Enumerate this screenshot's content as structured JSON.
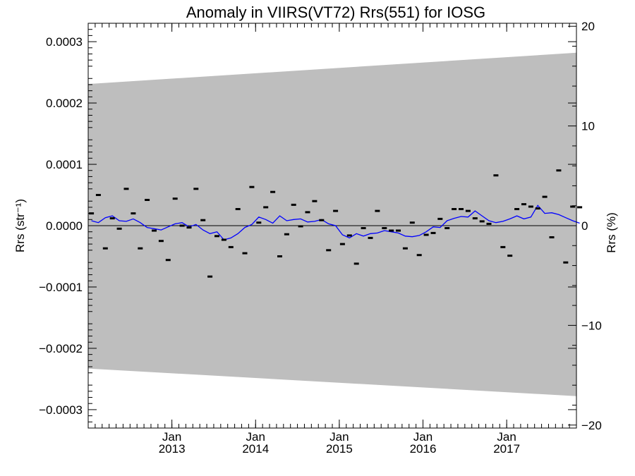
{
  "chart_data": {
    "type": "scatter",
    "title": "Anomaly in VIIRS(VT72) Rrs(551) for IOSG",
    "ylabel_left": "Rrs (str⁻¹)",
    "ylabel_right": "Rrs (%)",
    "xlabel": "",
    "xlim": [
      "2012-01-01",
      "2017-11-01"
    ],
    "ylim_left": [
      -0.00033,
      0.00033
    ],
    "ylim_right": [
      -20.3,
      20.3
    ],
    "x_ticks": [
      {
        "month": "Jan",
        "year": "2013",
        "date": "2013-01-01"
      },
      {
        "month": "Jan",
        "year": "2014",
        "date": "2014-01-01"
      },
      {
        "month": "Jan",
        "year": "2015",
        "date": "2015-01-01"
      },
      {
        "month": "Jan",
        "year": "2016",
        "date": "2016-01-01"
      },
      {
        "month": "Jan",
        "year": "2017",
        "date": "2017-01-01"
      }
    ],
    "y_ticks_left": [
      {
        "value": 0.0003,
        "label": "0.0003"
      },
      {
        "value": 0.0002,
        "label": "0.0002"
      },
      {
        "value": 0.0001,
        "label": "0.0001"
      },
      {
        "value": 0.0,
        "label": "0.0000"
      },
      {
        "value": -0.0001,
        "label": "−0.0001"
      },
      {
        "value": -0.0002,
        "label": "−0.0002"
      },
      {
        "value": -0.0003,
        "label": "−0.0003"
      }
    ],
    "y_ticks_right": [
      {
        "value": 20,
        "label": "20"
      },
      {
        "value": 10,
        "label": "10"
      },
      {
        "value": 0,
        "label": "0"
      },
      {
        "value": -10,
        "label": "−10"
      },
      {
        "value": -20,
        "label": "−20"
      }
    ],
    "band": {
      "x": [
        "2012-01-01",
        "2017-11-01"
      ],
      "upper": [
        0.000231,
        0.000282
      ],
      "lower": [
        -0.000233,
        -0.000278
      ],
      "color": "#bebebe"
    },
    "zero_line": 0,
    "series": [
      {
        "kind": "points",
        "color": "#000000",
        "x": [
          "2012-01",
          "2012-02",
          "2012-03",
          "2012-04",
          "2012-05",
          "2012-06",
          "2012-07",
          "2012-08",
          "2012-09",
          "2012-10",
          "2012-11",
          "2012-12",
          "2013-01",
          "2013-02",
          "2013-03",
          "2013-04",
          "2013-05",
          "2013-06",
          "2013-07",
          "2013-08",
          "2013-09",
          "2013-10",
          "2013-11",
          "2013-12",
          "2014-01",
          "2014-02",
          "2014-03",
          "2014-04",
          "2014-05",
          "2014-06",
          "2014-07",
          "2014-08",
          "2014-09",
          "2014-10",
          "2014-11",
          "2014-12",
          "2015-01",
          "2015-02",
          "2015-03",
          "2015-04",
          "2015-05",
          "2015-06",
          "2015-07",
          "2015-08",
          "2015-09",
          "2015-10",
          "2015-11",
          "2015-12",
          "2016-01",
          "2016-02",
          "2016-03",
          "2016-04",
          "2016-05",
          "2016-06",
          "2016-07",
          "2016-08",
          "2016-09",
          "2016-10",
          "2016-11",
          "2016-12",
          "2017-01",
          "2017-02",
          "2017-03",
          "2017-04",
          "2017-05",
          "2017-06",
          "2017-07",
          "2017-08",
          "2017-09",
          "2017-10",
          "2017-11"
        ],
        "y": [
          2e-05,
          5e-05,
          -3.7e-05,
          1.2e-05,
          -5e-06,
          6e-05,
          2e-05,
          -3.7e-05,
          4.2e-05,
          -8e-06,
          -2.5e-05,
          -5.6e-05,
          4.4e-05,
          0.0,
          -3e-06,
          6e-05,
          9e-06,
          -8.3e-05,
          -1.7e-05,
          -2.3e-05,
          -3.5e-05,
          2.7e-05,
          -4.5e-05,
          6.3e-05,
          5e-06,
          3e-05,
          5.5e-05,
          -5e-05,
          -1.4e-05,
          3.4e-05,
          -1e-06,
          2.2e-05,
          4e-05,
          9e-06,
          -4e-05,
          2.4e-05,
          -3e-05,
          -1.6e-05,
          -6.2e-05,
          -4e-06,
          -2e-05,
          2.4e-05,
          -4e-06,
          -8e-06,
          -8e-06,
          -3.7e-05,
          5e-06,
          -4.8e-05,
          -1.5e-05,
          -1.2e-05,
          1.1e-05,
          -4e-06,
          2.7e-05,
          2.7e-05,
          2.4e-05,
          1.2e-05,
          7e-06,
          3e-06,
          8.2e-05,
          -3.5e-05,
          -4.9e-05,
          2.7e-05,
          3.5e-05,
          3.1e-05,
          2.8e-05,
          4.7e-05,
          -1.9e-05,
          9e-05,
          -6e-05,
          3.1e-05,
          3e-05
        ]
      },
      {
        "kind": "line",
        "color": "#0000ff",
        "x": [
          "2012-01",
          "2012-02",
          "2012-03",
          "2012-04",
          "2012-05",
          "2012-06",
          "2012-07",
          "2012-08",
          "2012-09",
          "2012-10",
          "2012-11",
          "2012-12",
          "2013-01",
          "2013-02",
          "2013-03",
          "2013-04",
          "2013-05",
          "2013-06",
          "2013-07",
          "2013-08",
          "2013-09",
          "2013-10",
          "2013-11",
          "2013-12",
          "2014-01",
          "2014-02",
          "2014-03",
          "2014-04",
          "2014-05",
          "2014-06",
          "2014-07",
          "2014-08",
          "2014-09",
          "2014-10",
          "2014-11",
          "2014-12",
          "2015-01",
          "2015-02",
          "2015-03",
          "2015-04",
          "2015-05",
          "2015-06",
          "2015-07",
          "2015-08",
          "2015-09",
          "2015-10",
          "2015-11",
          "2015-12",
          "2016-01",
          "2016-02",
          "2016-03",
          "2016-04",
          "2016-05",
          "2016-06",
          "2016-07",
          "2016-08",
          "2016-09",
          "2016-10",
          "2016-11",
          "2016-12",
          "2017-01",
          "2017-02",
          "2017-03",
          "2017-04",
          "2017-05",
          "2017-06",
          "2017-07",
          "2017-08",
          "2017-09",
          "2017-10",
          "2017-11"
        ],
        "y": [
          8e-06,
          5e-06,
          1.3e-05,
          1.6e-05,
          8e-06,
          7e-06,
          1.1e-05,
          5e-06,
          -3e-06,
          -5e-06,
          -7e-06,
          -2e-06,
          3e-06,
          5e-06,
          -2e-06,
          2e-06,
          -7e-06,
          -1.3e-05,
          -1e-05,
          -2.3e-05,
          -2e-05,
          -1.3e-05,
          -3e-06,
          2e-06,
          1.4e-05,
          1e-05,
          4e-06,
          1.6e-05,
          8e-06,
          1e-05,
          1.1e-05,
          6e-06,
          7e-06,
          1e-05,
          3e-06,
          0.0,
          -1.5e-05,
          -2e-05,
          -1.3e-05,
          -1.7e-05,
          -1.3e-05,
          -1.2e-05,
          -8e-06,
          -1e-05,
          -1.2e-05,
          -1.7e-05,
          -1.8e-05,
          -1.6e-05,
          -1e-05,
          -2e-06,
          -3e-06,
          8e-06,
          1.2e-05,
          1.5e-05,
          1.4e-05,
          2.4e-05,
          1.6e-05,
          8e-06,
          5e-06,
          7e-06,
          1.1e-05,
          1.6e-05,
          1.1e-05,
          1.4e-05,
          3.3e-05,
          2e-05,
          2.1e-05,
          1.8e-05,
          1.3e-05,
          8e-06,
          4e-06
        ]
      }
    ]
  }
}
